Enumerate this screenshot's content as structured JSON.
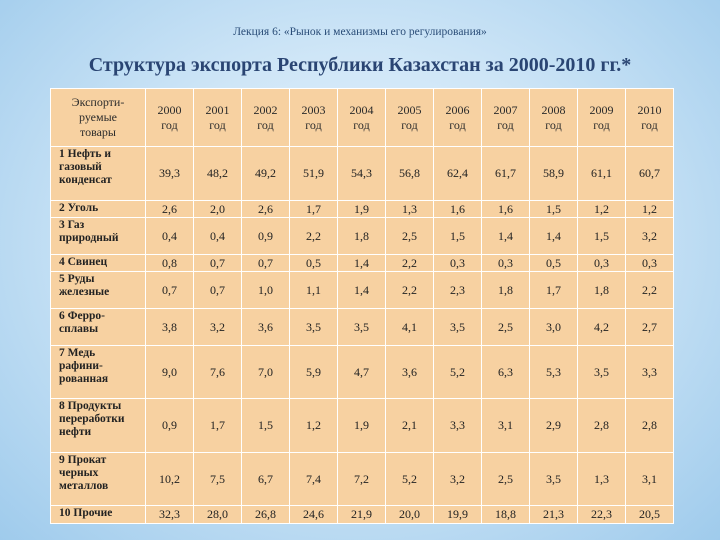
{
  "lecture": "Лекция 6: «Рынок и механизмы его регулирования»",
  "title": "Структура экспорта Республики Казахстан за 2000-2010 гг.*",
  "table": {
    "product_header": [
      "Экспорти-",
      "руемые",
      "товары"
    ],
    "years": [
      {
        "year": "2000",
        "unit": "год"
      },
      {
        "year": "2001",
        "unit": "год"
      },
      {
        "year": "2002",
        "unit": "год"
      },
      {
        "year": "2003",
        "unit": "год"
      },
      {
        "year": "2004",
        "unit": "год"
      },
      {
        "year": "2005",
        "unit": "год"
      },
      {
        "year": "2006",
        "unit": "год"
      },
      {
        "year": "2007",
        "unit": "год"
      },
      {
        "year": "2008",
        "unit": "год"
      },
      {
        "year": "2009",
        "unit": "год"
      },
      {
        "year": "2010",
        "unit": "год"
      }
    ],
    "rows": [
      {
        "product": [
          "1 Нефть и",
          "газовый",
          "конденсат"
        ],
        "values": [
          "39,3",
          "48,2",
          "49,2",
          "51,9",
          "54,3",
          "56,8",
          "62,4",
          "61,7",
          "58,9",
          "61,1",
          "60,7"
        ]
      },
      {
        "product": [
          "2 Уголь"
        ],
        "values": [
          "2,6",
          "2,0",
          "2,6",
          "1,7",
          "1,9",
          "1,3",
          "1,6",
          "1,6",
          "1,5",
          "1,2",
          "1,2"
        ]
      },
      {
        "product": [
          "3 Газ",
          "природный"
        ],
        "values": [
          "0,4",
          "0,4",
          "0,9",
          "2,2",
          "1,8",
          "2,5",
          "1,5",
          "1,4",
          "1,4",
          "1,5",
          "3,2"
        ]
      },
      {
        "product": [
          "4 Свинец"
        ],
        "values": [
          "0,8",
          "0,7",
          "0,7",
          "0,5",
          "1,4",
          "2,2",
          "0,3",
          "0,3",
          "0,5",
          "0,3",
          "0,3"
        ]
      },
      {
        "product": [
          "5 Руды",
          "железные"
        ],
        "values": [
          "0,7",
          "0,7",
          "1,0",
          "1,1",
          "1,4",
          "2,2",
          "2,3",
          "1,8",
          "1,7",
          "1,8",
          "2,2"
        ]
      },
      {
        "product": [
          "6 Ферро-",
          "сплавы"
        ],
        "values": [
          "3,8",
          "3,2",
          "3,6",
          "3,5",
          "3,5",
          "4,1",
          "3,5",
          "2,5",
          "3,0",
          "4,2",
          "2,7"
        ]
      },
      {
        "product": [
          "7 Медь",
          "рафини-",
          "рованная"
        ],
        "values": [
          "9,0",
          "7,6",
          "7,0",
          "5,9",
          "4,7",
          "3,6",
          "5,2",
          "6,3",
          "5,3",
          "3,5",
          "3,3"
        ]
      },
      {
        "product": [
          "8 Продукты",
          "переработки",
          "нефти"
        ],
        "values": [
          "0,9",
          "1,7",
          "1,5",
          "1,2",
          "1,9",
          "2,1",
          "3,3",
          "3,1",
          "2,9",
          "2,8",
          "2,8"
        ]
      },
      {
        "product": [
          "9 Прокат",
          "черных",
          "металлов"
        ],
        "values": [
          "10,2",
          "7,5",
          "6,7",
          "7,4",
          "7,2",
          "5,2",
          "3,2",
          "2,5",
          "3,5",
          "1,3",
          "3,1"
        ]
      },
      {
        "product": [
          "10 Прочие"
        ],
        "values": [
          "32,3",
          "28,0",
          "26,8",
          "24,6",
          "21,9",
          "20,0",
          "19,9",
          "18,8",
          "21,3",
          "22,3",
          "20,5"
        ]
      }
    ]
  }
}
